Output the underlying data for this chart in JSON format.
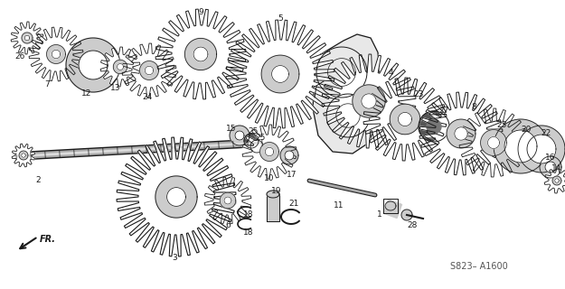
{
  "bg_color": "#ffffff",
  "diagram_code": "S823– A1600",
  "fig_width": 6.25,
  "fig_height": 3.2,
  "dpi": 100,
  "lc": "#1a1a1a",
  "font_size": 6.5,
  "label_color": "#1a1a1a"
}
